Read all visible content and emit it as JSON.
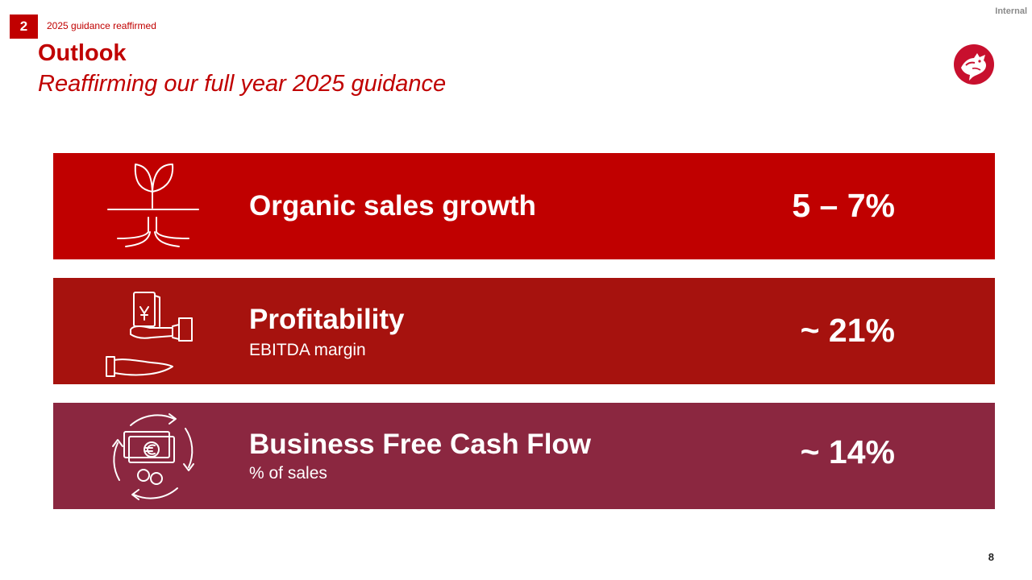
{
  "header": {
    "classification": "Internal",
    "section_number": "2",
    "section_label": "2025 guidance reaffirmed",
    "title": "Outlook",
    "subtitle": "Reaffirming our full year 2025 guidance"
  },
  "logo": {
    "icon": "dragon-logo-icon",
    "color": "#c8102e"
  },
  "panels": [
    {
      "icon": "sprout-icon",
      "heading": "Organic sales growth",
      "subheading": "",
      "value": "5 – 7%",
      "color": "#c00000"
    },
    {
      "icon": "hand-money-icon",
      "heading": "Profitability",
      "subheading": "EBITDA margin",
      "value": "~ 21%",
      "color": "#a6120e"
    },
    {
      "icon": "cash-cycle-icon",
      "heading": "Business Free Cash Flow",
      "subheading": "% of sales",
      "value": "~ 14%",
      "color": "#8b2740"
    }
  ],
  "footer": {
    "page_number": "8"
  }
}
